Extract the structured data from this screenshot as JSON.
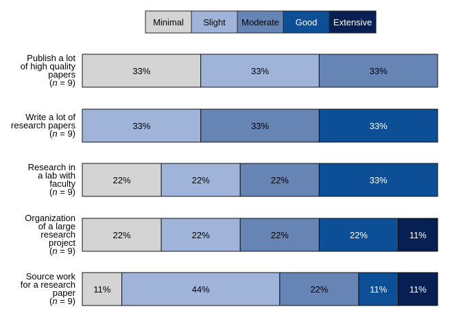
{
  "chart_data": {
    "type": "bar",
    "orientation": "horizontal",
    "stacked": true,
    "normalized": true,
    "legend_position": "top",
    "legend": [
      "Minimal",
      "Slight",
      "Moderate",
      "Good",
      "Extensive"
    ],
    "colors": {
      "Minimal": "#d4d4d4",
      "Slight": "#a0b4da",
      "Moderate": "#6685b5",
      "Good": "#0c4f96",
      "Extensive": "#062054"
    },
    "text_colors": {
      "Minimal": "#000000",
      "Slight": "#000000",
      "Moderate": "#000000",
      "Good": "#ffffff",
      "Extensive": "#ffffff"
    },
    "categories": [
      {
        "label_lines": [
          "Publish a lot",
          "of high quality",
          "papers"
        ],
        "n_label": "(n = 9)"
      },
      {
        "label_lines": [
          "Write a lot of",
          "research papers"
        ],
        "n_label": "(n = 9)"
      },
      {
        "label_lines": [
          "Research in",
          "a lab with",
          "faculty"
        ],
        "n_label": "(n = 9)"
      },
      {
        "label_lines": [
          "Organization",
          "of a large",
          "research",
          "project"
        ],
        "n_label": "(n = 9)"
      },
      {
        "label_lines": [
          "Source work",
          "for a research",
          "paper"
        ],
        "n_label": "(n = 9)"
      }
    ],
    "series": [
      {
        "name": "Minimal",
        "values": [
          33,
          0,
          22,
          22,
          11
        ],
        "labels": [
          "33%",
          "",
          "22%",
          "22%",
          "11%"
        ]
      },
      {
        "name": "Slight",
        "values": [
          33,
          33,
          22,
          22,
          44
        ],
        "labels": [
          "33%",
          "33%",
          "22%",
          "22%",
          "44%"
        ]
      },
      {
        "name": "Moderate",
        "values": [
          33,
          33,
          22,
          22,
          22
        ],
        "labels": [
          "33%",
          "33%",
          "22%",
          "22%",
          "22%"
        ]
      },
      {
        "name": "Good",
        "values": [
          0,
          33,
          33,
          22,
          11
        ],
        "labels": [
          "",
          "33%",
          "33%",
          "22%",
          "11%"
        ]
      },
      {
        "name": "Extensive",
        "values": [
          0,
          0,
          0,
          11,
          11
        ],
        "labels": [
          "",
          "",
          "",
          "11%",
          "11%"
        ]
      }
    ]
  }
}
